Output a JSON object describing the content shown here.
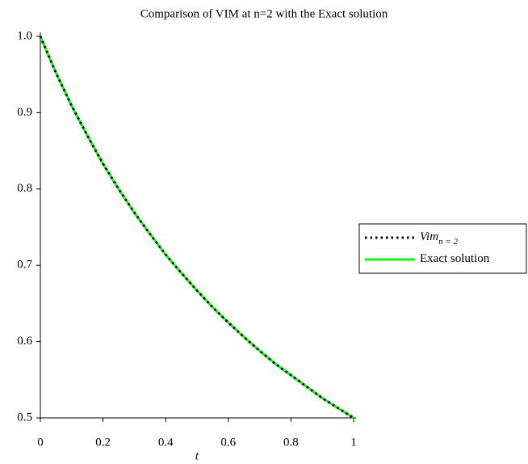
{
  "chart_data": {
    "type": "line",
    "title": "Comparison of VIM at n=2 with the Exact solution",
    "x_label": "t",
    "x": [
      0,
      0.05,
      0.1,
      0.15,
      0.2,
      0.25,
      0.3,
      0.35,
      0.4,
      0.45,
      0.5,
      0.55,
      0.6,
      0.65,
      0.7,
      0.75,
      0.8,
      0.85,
      0.9,
      0.95,
      1
    ],
    "series": [
      {
        "name": "Vim",
        "name_subscript": "n = 2",
        "color": "#000000",
        "style": "dotted",
        "values": [
          1,
          0.952,
          0.909,
          0.87,
          0.833,
          0.8,
          0.769,
          0.741,
          0.714,
          0.69,
          0.667,
          0.645,
          0.625,
          0.606,
          0.588,
          0.571,
          0.556,
          0.541,
          0.526,
          0.513,
          0.5
        ]
      },
      {
        "name": "Exact solution",
        "color": "#00ff00",
        "style": "solid",
        "values": [
          1,
          0.952,
          0.909,
          0.87,
          0.833,
          0.8,
          0.769,
          0.741,
          0.714,
          0.69,
          0.667,
          0.645,
          0.625,
          0.606,
          0.588,
          0.571,
          0.556,
          0.541,
          0.526,
          0.513,
          0.5
        ]
      }
    ],
    "xlim": [
      0,
      1
    ],
    "xticks": [
      0,
      0.2,
      0.4,
      0.6,
      0.8,
      1
    ],
    "ylim": [
      0.5,
      1
    ],
    "yticks": [
      0.5,
      0.6,
      0.7,
      0.8,
      0.9,
      {
        "value": 1,
        "label": "1.0"
      }
    ],
    "legend": "right"
  }
}
